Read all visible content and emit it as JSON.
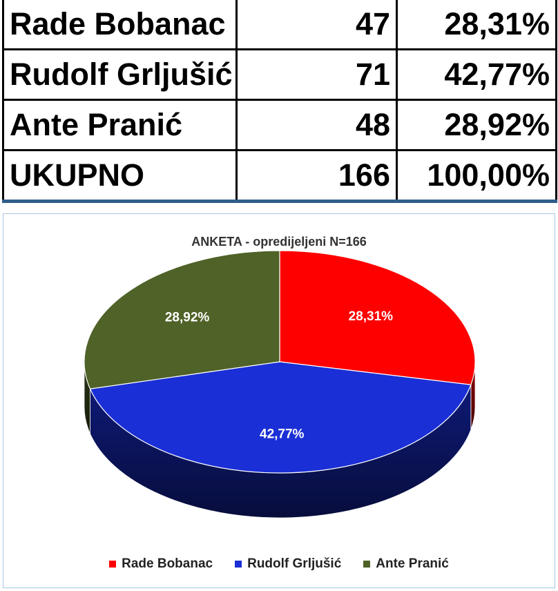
{
  "table": {
    "rows": [
      {
        "name": "Rade Bobanac",
        "count": "47",
        "pct": "28,31%"
      },
      {
        "name": "Rudolf Grljušić",
        "count": "71",
        "pct": "42,77%"
      },
      {
        "name": "Ante Pranić",
        "count": "48",
        "pct": "28,92%"
      },
      {
        "name": "UKUPNO",
        "count": "166",
        "pct": "100,00%"
      }
    ]
  },
  "chart_data": {
    "type": "pie",
    "title": "ANKETA - opredijeljeni N=166",
    "categories": [
      "Rade Bobanac",
      "Rudolf Grljušić",
      "Ante Pranić"
    ],
    "values": [
      28.31,
      42.77,
      28.92
    ],
    "labels": [
      "28,31%",
      "42,77%",
      "28,92%"
    ],
    "colors": [
      "#ff0000",
      "#1a2fd6",
      "#4f6228"
    ],
    "legend_position": "bottom",
    "style": "3d"
  }
}
